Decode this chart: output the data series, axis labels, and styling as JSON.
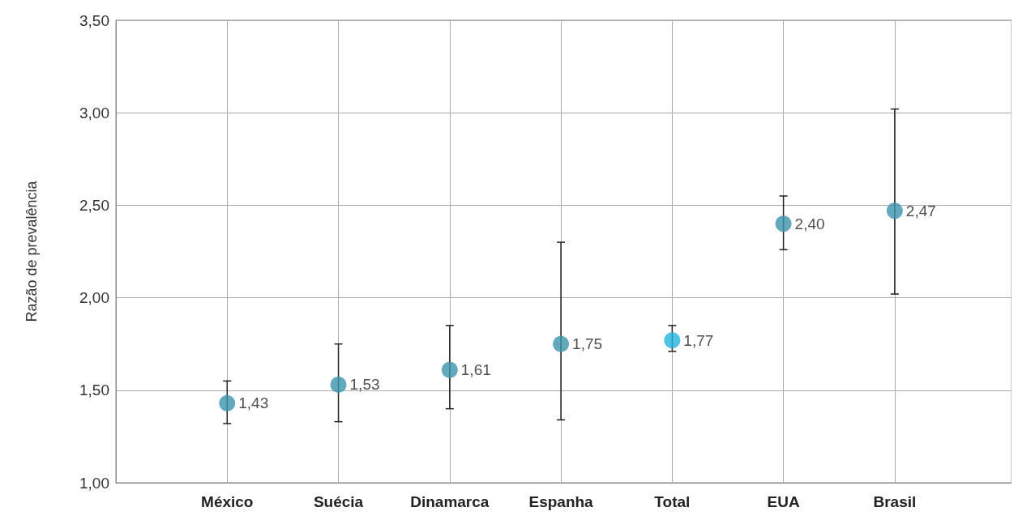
{
  "chart_data": {
    "type": "scatter",
    "ylabel": "Razão de prevalência",
    "categories": [
      "México",
      "Suécia",
      "Dinamarca",
      "Espanha",
      "Total",
      "EUA",
      "Brasil"
    ],
    "values": [
      1.43,
      1.53,
      1.61,
      1.75,
      1.77,
      2.4,
      2.47
    ],
    "value_labels": [
      "1,43",
      "1,53",
      "1,61",
      "1,75",
      "1,77",
      "2,40",
      "2,47"
    ],
    "colors": [
      "#3b93ad",
      "#3b93ad",
      "#3b93ad",
      "#3b93ad",
      "#22b4e0",
      "#3b93ad",
      "#3b93ad"
    ],
    "errors": [
      [
        1.32,
        1.55
      ],
      [
        1.33,
        1.75
      ],
      [
        1.4,
        1.85
      ],
      [
        1.34,
        2.3
      ],
      [
        1.71,
        1.85
      ],
      [
        2.26,
        2.55
      ],
      [
        2.02,
        3.02
      ]
    ],
    "ylim": [
      1.0,
      3.5
    ],
    "yticks": [
      {
        "value": 1.0,
        "label": "1,00"
      },
      {
        "value": 1.5,
        "label": "1,50"
      },
      {
        "value": 2.0,
        "label": "2,00"
      },
      {
        "value": 2.5,
        "label": "2,50"
      },
      {
        "value": 3.0,
        "label": "3,00"
      },
      {
        "value": 3.5,
        "label": "3,50"
      }
    ],
    "grid": true,
    "marker": "circle"
  }
}
